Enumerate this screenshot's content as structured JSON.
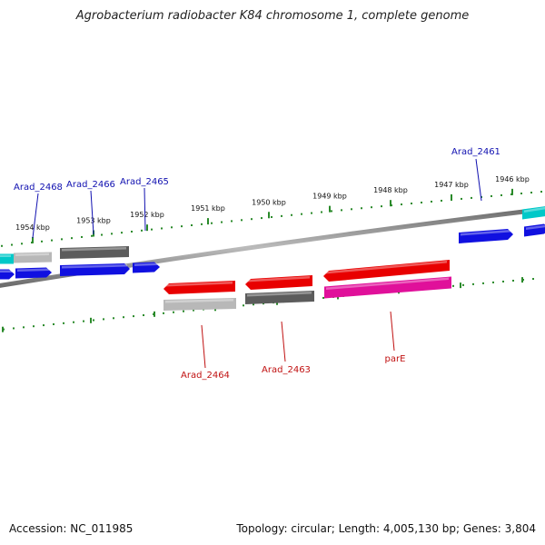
{
  "title": "Agrobacterium radiobacter K84 chromosome 1, complete genome",
  "accession_text": "Accession: NC_011985",
  "topology_text": "Topology: circular; Length: 4,005,130 bp; Genes: 3,804",
  "colors": {
    "backbone": "#8a8a8a",
    "tick": "#2a8a2a",
    "label_forward": "#1010b0",
    "label_reverse": "#c01010",
    "blue": "#1010e0",
    "red": "#e80000",
    "dark_gray": "#5c5c5c",
    "light_gray": "#b8b8b8",
    "cyan": "#00c8c8",
    "magenta": "#e0109a"
  },
  "scale": {
    "unit": "kbp",
    "ticks": [
      {
        "kbp": 1954,
        "label": "1954 kbp"
      },
      {
        "kbp": 1953,
        "label": "1953 kbp"
      },
      {
        "kbp": 1952,
        "label": "1952 kbp"
      },
      {
        "kbp": 1951,
        "label": "1951 kbp"
      },
      {
        "kbp": 1950,
        "label": "1950 kbp"
      },
      {
        "kbp": 1949,
        "label": "1949 kbp"
      },
      {
        "kbp": 1948,
        "label": "1948 kbp"
      },
      {
        "kbp": 1947,
        "label": "1947 kbp"
      },
      {
        "kbp": 1946,
        "label": "1946 kbp"
      }
    ]
  },
  "gene_labels": [
    {
      "name": "Arad_2468",
      "strand": "forward"
    },
    {
      "name": "Arad_2466",
      "strand": "forward"
    },
    {
      "name": "Arad_2465",
      "strand": "forward"
    },
    {
      "name": "Arad_2461",
      "strand": "forward"
    },
    {
      "name": "Arad_2464",
      "strand": "reverse"
    },
    {
      "name": "Arad_2463",
      "strand": "reverse"
    },
    {
      "name": "parE",
      "strand": "reverse"
    }
  ]
}
